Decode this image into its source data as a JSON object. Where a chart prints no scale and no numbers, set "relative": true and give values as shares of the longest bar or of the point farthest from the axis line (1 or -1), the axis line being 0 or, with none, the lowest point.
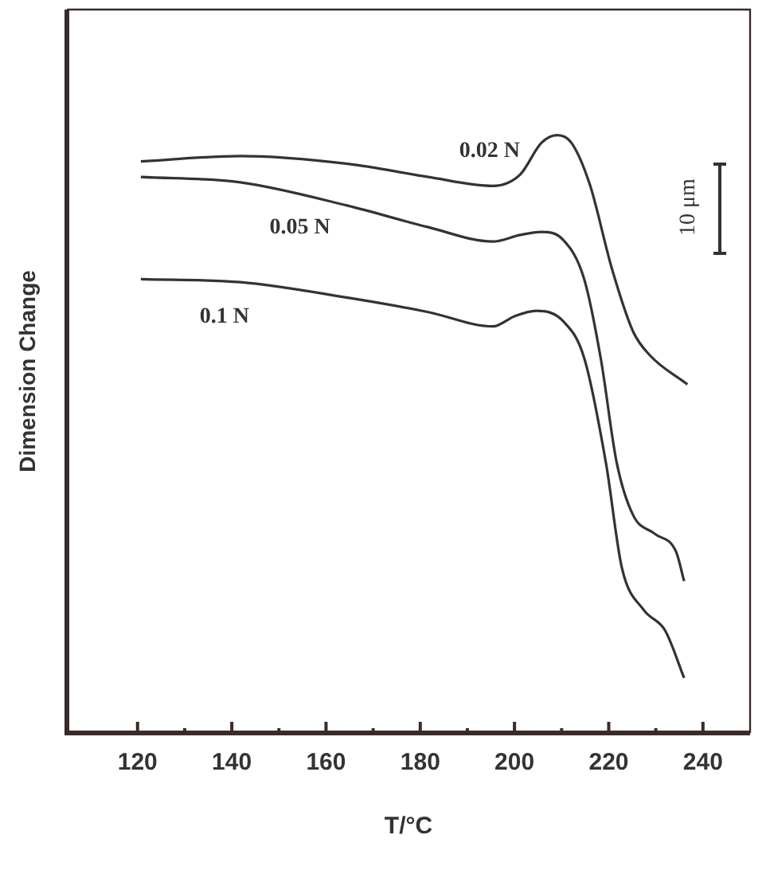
{
  "chart_data": {
    "type": "line",
    "relative": true,
    "xlabel": "T/°C",
    "ylabel": "Dimension Change",
    "annotations": [
      "10 μm"
    ],
    "marker": "none",
    "line_style": "solid",
    "legend": false,
    "xlim": [
      105,
      250
    ],
    "xticks": [
      120,
      {
        "value": 130,
        "label": null
      },
      140,
      {
        "value": 150,
        "label": null
      },
      160,
      {
        "value": 170,
        "label": null
      },
      180,
      {
        "value": 190,
        "label": null
      },
      200,
      {
        "value": 210,
        "label": null
      },
      220,
      {
        "value": 230,
        "label": null
      },
      240
    ],
    "series": [
      {
        "name": "0.02 N",
        "color": "#333333",
        "x": [
          120.7,
          141.8,
          164.6,
          181.7,
          195.4,
          201.2,
          205.7,
          209.1,
          212.1,
          216,
          220.7,
          225.2,
          228.7,
          236.7
        ],
        "values": [
          0.956,
          0.965,
          0.952,
          0.93,
          0.915,
          0.934,
          0.987,
          1,
          0.987,
          0.917,
          0.776,
          0.671,
          0.632,
          0.583
        ]
      },
      {
        "name": "0.05 N",
        "color": "#333333",
        "x": [
          120.7,
          141.8,
          164.6,
          181.7,
          195.4,
          201.2,
          205.7,
          210.3,
          214.8,
          218.3,
          221.7,
          225.2,
          229.8,
          234.3,
          236
        ],
        "values": [
          0.93,
          0.921,
          0.882,
          0.846,
          0.822,
          0.833,
          0.838,
          0.825,
          0.759,
          0.627,
          0.452,
          0.364,
          0.333,
          0.303,
          0.254
        ]
      },
      {
        "name": "0.1 N",
        "color": "#333333",
        "x": [
          120.7,
          141.8,
          164.6,
          181.7,
          195.4,
          200,
          204.6,
          210.3,
          214.8,
          219.4,
          222.8,
          227.4,
          232,
          236
        ],
        "values": [
          0.759,
          0.754,
          0.728,
          0.704,
          0.68,
          0.697,
          0.706,
          0.689,
          0.627,
          0.452,
          0.276,
          0.206,
          0.171,
          0.092
        ]
      }
    ]
  }
}
